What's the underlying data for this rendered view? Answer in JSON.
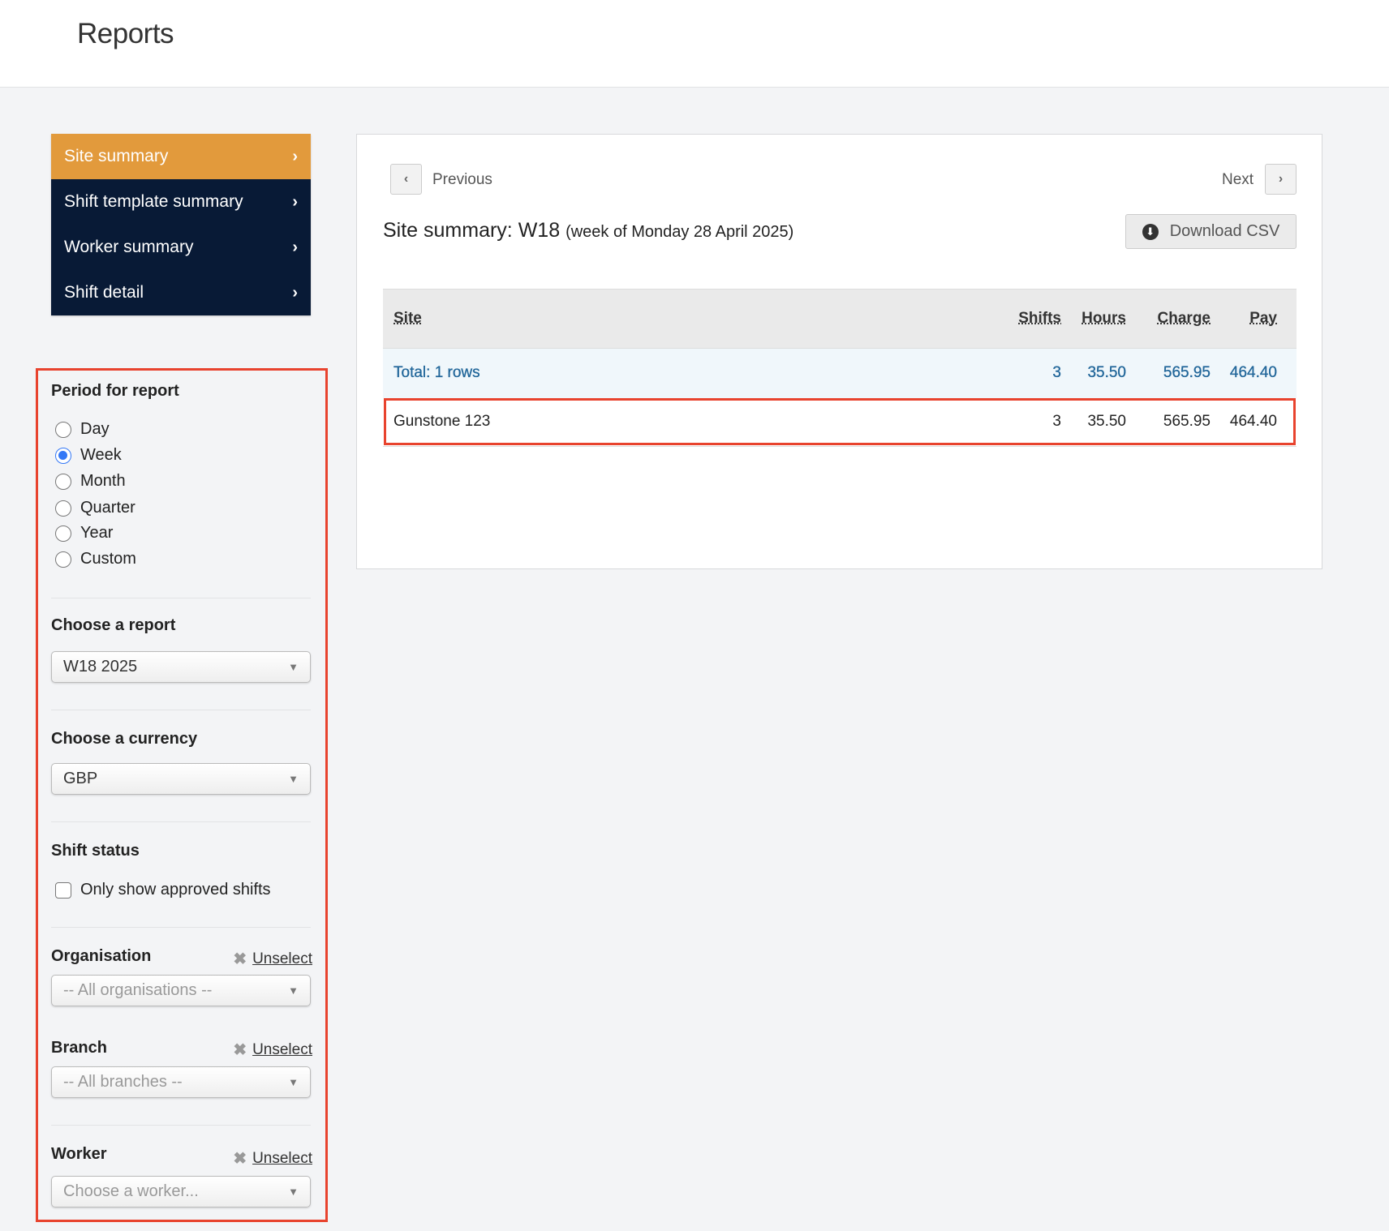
{
  "header": {
    "title": "Reports"
  },
  "nav": {
    "items": [
      {
        "label": "Site summary",
        "active": true
      },
      {
        "label": "Shift template summary",
        "active": false
      },
      {
        "label": "Worker summary",
        "active": false
      },
      {
        "label": "Shift detail",
        "active": false
      }
    ],
    "chevron": "›"
  },
  "filters": {
    "period": {
      "label": "Period for report",
      "options": [
        "Day",
        "Week",
        "Month",
        "Quarter",
        "Year",
        "Custom"
      ],
      "selected": "Week"
    },
    "report": {
      "label": "Choose a report",
      "value": "W18 2025"
    },
    "currency": {
      "label": "Choose a currency",
      "value": "GBP"
    },
    "shift_status": {
      "label": "Shift status",
      "checkbox_label": "Only show approved shifts",
      "checked": false
    },
    "organisation": {
      "label": "Organisation",
      "unselect": "Unselect",
      "placeholder": "-- All organisations --"
    },
    "branch": {
      "label": "Branch",
      "unselect": "Unselect",
      "placeholder": "-- All branches --"
    },
    "worker": {
      "label": "Worker",
      "unselect": "Unselect",
      "placeholder": "Choose a worker..."
    }
  },
  "main": {
    "previous": "Previous",
    "next": "Next",
    "title": "Site summary: W18",
    "subtitle": "(week of Monday 28 April 2025)",
    "download": "Download CSV",
    "table": {
      "columns": [
        "Site",
        "Shifts",
        "Hours",
        "Charge",
        "Pay"
      ],
      "total": {
        "site": "Total: 1 rows",
        "shifts": "3",
        "hours": "35.50",
        "charge": "565.95",
        "pay": "464.40"
      },
      "rows": [
        {
          "site": "Gunstone 123",
          "shifts": "3",
          "hours": "35.50",
          "charge": "565.95",
          "pay": "464.40"
        }
      ]
    }
  },
  "colors": {
    "nav_bg": "#081a36",
    "nav_active": "#e29a3c",
    "highlight": "#e8432e",
    "total_text": "#22679a",
    "radio_selected": "#3478f6"
  }
}
